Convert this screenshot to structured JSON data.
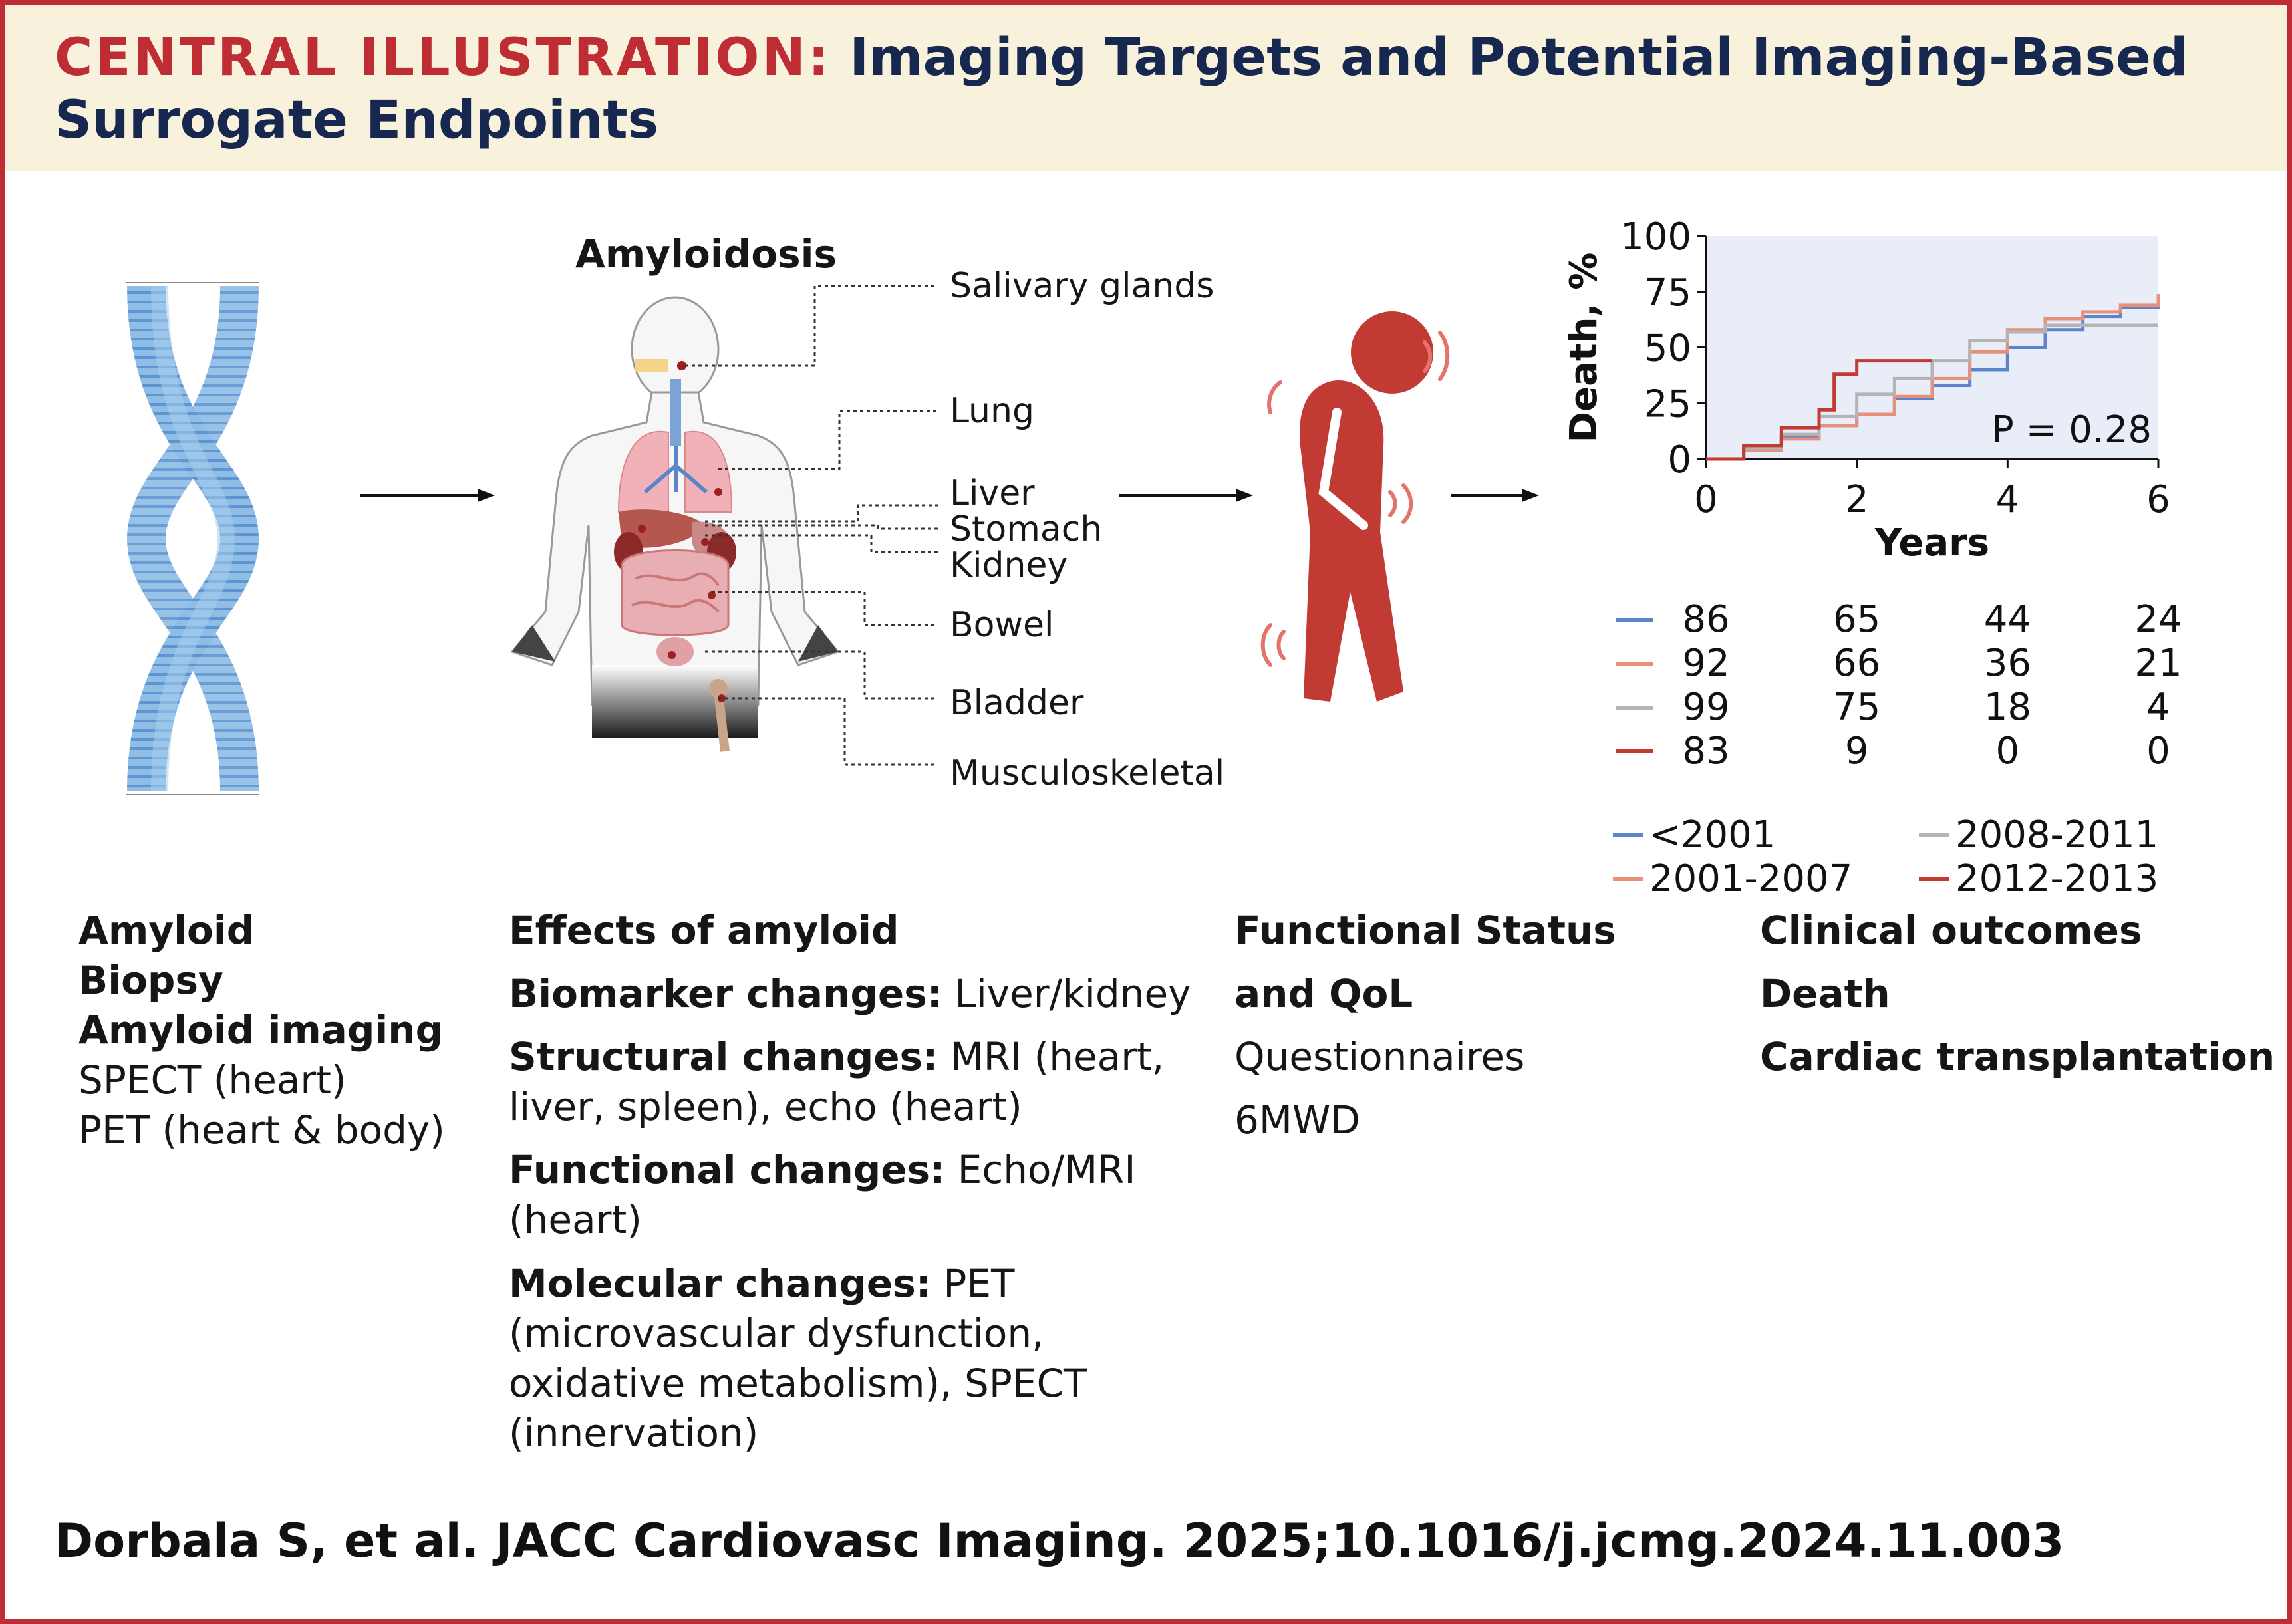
{
  "header": {
    "title_lead": "CENTRAL ILLUSTRATION:",
    "title_rest": "Imaging Targets and Potential Imaging-Based",
    "title_line2": "Surrogate Endpoints"
  },
  "colors": {
    "brand_red": "#be2d33",
    "navy": "#16284f",
    "header_bg": "#f8f1db",
    "plot_bg": "#e8edf8"
  },
  "icons": [
    "amyloid-fibril-icon",
    "human-body-organs-icon",
    "unwell-person-icon",
    "arrow-right-icon"
  ],
  "body_diagram": {
    "title": "Amyloidosis",
    "organs": [
      "Salivary glands",
      "Lung",
      "Liver",
      "Stomach",
      "Kidney",
      "Bowel",
      "Bladder",
      "Musculoskeletal"
    ]
  },
  "columns": {
    "amyloid": {
      "heading": "Amyloid",
      "biopsy": "Biopsy",
      "imaging_heading": "Amyloid imaging",
      "spect": "SPECT (heart)",
      "pet": "PET (heart & body)"
    },
    "effects": {
      "heading": "Effects of amyloid",
      "biomarker_label": "Biomarker changes:",
      "biomarker_text": " Liver/kidney",
      "structural_label": "Structural changes:",
      "structural_text": " MRI (heart,",
      "structural_text2": "liver, spleen), echo (heart)",
      "functional_label": "Functional changes:",
      "functional_text": " Echo/MRI",
      "functional_text2": "(heart)",
      "molecular_label": "Molecular changes:",
      "molecular_text": " PET",
      "molecular_text2": "(microvascular dysfunction,",
      "molecular_text3": "oxidative metabolism), SPECT",
      "molecular_text4": "(innervation)"
    },
    "functional": {
      "heading1": "Functional Status",
      "heading2": "and QoL",
      "item1": "Questionnaires",
      "item2": "6MWD"
    },
    "outcomes": {
      "heading": "Clinical outcomes",
      "item1": "Death",
      "item2": "Cardiac transplantation"
    }
  },
  "chart_data": {
    "type": "line",
    "title": "",
    "xlabel": "Years",
    "ylabel": "Death, %",
    "xlim": [
      0,
      6
    ],
    "ylim": [
      0,
      100
    ],
    "xticks": [
      0,
      2,
      4,
      6
    ],
    "yticks": [
      0,
      25,
      50,
      75,
      100
    ],
    "annotation": "P = 0.28",
    "series": [
      {
        "name": "<2001",
        "color": "#5b84c9",
        "x": [
          0,
          0.5,
          1,
          1.5,
          2,
          2.5,
          3,
          3.5,
          4,
          4.5,
          5,
          5.5,
          6
        ],
        "y": [
          0,
          5,
          10,
          15,
          20,
          27,
          33,
          40,
          50,
          58,
          64,
          68,
          71
        ],
        "at_risk": [
          86,
          65,
          44,
          24
        ]
      },
      {
        "name": "2001-2007",
        "color": "#e8907a",
        "x": [
          0,
          0.5,
          1,
          1.5,
          2,
          2.5,
          3,
          3.5,
          4,
          4.5,
          5,
          5.5,
          6
        ],
        "y": [
          0,
          4,
          9,
          15,
          20,
          28,
          36,
          48,
          58,
          63,
          66,
          69,
          74
        ],
        "at_risk": [
          92,
          66,
          36,
          21
        ]
      },
      {
        "name": "2008-2011",
        "color": "#b4b4b4",
        "x": [
          0,
          0.5,
          1,
          1.5,
          2,
          2.5,
          3,
          3.5,
          4,
          4.5,
          5,
          5.5,
          6
        ],
        "y": [
          0,
          5,
          11,
          19,
          29,
          36,
          44,
          53,
          57,
          60,
          60,
          60,
          60
        ],
        "at_risk": [
          99,
          75,
          18,
          4
        ]
      },
      {
        "name": "2012-2013",
        "color": "#c13a33",
        "x": [
          0,
          0.5,
          1,
          1.5,
          1.7,
          2,
          2.5,
          3
        ],
        "y": [
          0,
          6,
          14,
          22,
          38,
          44,
          44,
          44
        ],
        "at_risk": [
          83,
          9,
          0,
          0
        ]
      }
    ]
  },
  "citation": "Dorbala S, et al. JACC Cardiovasc Imaging. 2025;10.1016/j.jcmg.2024.11.003"
}
